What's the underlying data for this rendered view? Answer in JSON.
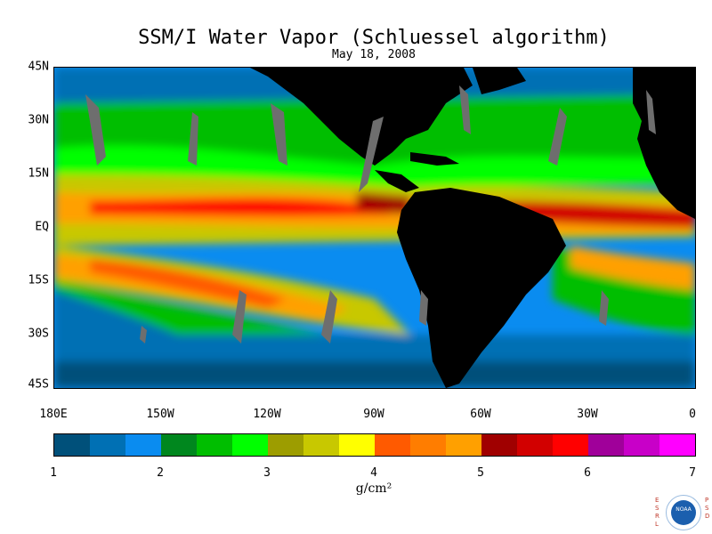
{
  "title": "SSM/I Water Vapor (Schluessel algorithm)",
  "date": "May 18, 2008",
  "lat_labels": [
    "45N",
    "30N",
    "15N",
    "EQ",
    "15S",
    "30S",
    "45S"
  ],
  "lon_labels": [
    "180E",
    "150W",
    "120W",
    "90W",
    "60W",
    "30W",
    "0"
  ],
  "colorbar": {
    "unit": "g/cm²",
    "tick_labels": [
      "1",
      "2",
      "3",
      "4",
      "5",
      "6",
      "7"
    ],
    "colors": [
      "#00507a",
      "#0070b4",
      "#0a8cf0",
      "#00871e",
      "#00be00",
      "#00ff00",
      "#9d9d00",
      "#c8c800",
      "#ffff00",
      "#ff5a00",
      "#ff7d00",
      "#ffa000",
      "#a00000",
      "#d20000",
      "#ff0000",
      "#a0009a",
      "#c800c8",
      "#ff00ff"
    ]
  },
  "logo": {
    "left_text": [
      "E",
      "S",
      "R",
      "L"
    ],
    "right_text": [
      "P",
      "S",
      "D"
    ],
    "center_text": "NOAA"
  }
}
